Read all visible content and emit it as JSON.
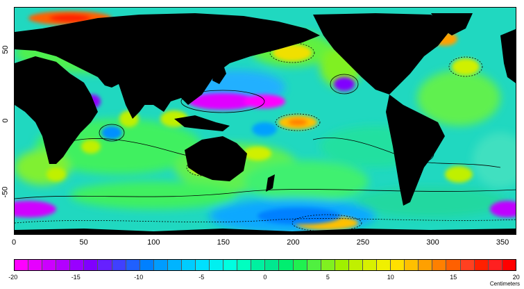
{
  "map": {
    "x_ticks": [
      "0",
      "50",
      "100",
      "150",
      "200",
      "250",
      "300",
      "350"
    ],
    "x_tick_values": [
      0,
      50,
      100,
      150,
      200,
      250,
      300,
      350
    ],
    "x_range": [
      0,
      360
    ],
    "y_ticks": [
      "50",
      "0",
      "-50"
    ],
    "y_tick_values": [
      50,
      0,
      -50
    ],
    "y_range": [
      -80,
      80
    ],
    "land_color": "#000000",
    "contour_color": "#000000"
  },
  "colorbar": {
    "tick_labels": [
      "-20",
      "-15",
      "-10",
      "-5",
      "0",
      "5",
      "10",
      "15",
      "20"
    ],
    "tick_values": [
      -20,
      -15,
      -10,
      -5,
      0,
      5,
      10,
      15,
      20
    ],
    "range": [
      -20,
      20
    ],
    "units": "Centimeters",
    "colors": [
      "#ff00ff",
      "#e600ff",
      "#cc00ff",
      "#b300ff",
      "#9900ff",
      "#8000ff",
      "#6620ff",
      "#4040ff",
      "#2060ff",
      "#0080ff",
      "#009cff",
      "#00b4ff",
      "#00ccff",
      "#00e0ff",
      "#00f0f0",
      "#00ffe0",
      "#00ffc0",
      "#00f0a0",
      "#00e890",
      "#00ee70",
      "#20f050",
      "#50f040",
      "#80f020",
      "#a0f000",
      "#c0f000",
      "#d8f000",
      "#f0f000",
      "#ffe000",
      "#ffc000",
      "#ffa000",
      "#ff8000",
      "#ff6000",
      "#ff4020",
      "#ff2000",
      "#ff2020",
      "#ff0000"
    ]
  }
}
